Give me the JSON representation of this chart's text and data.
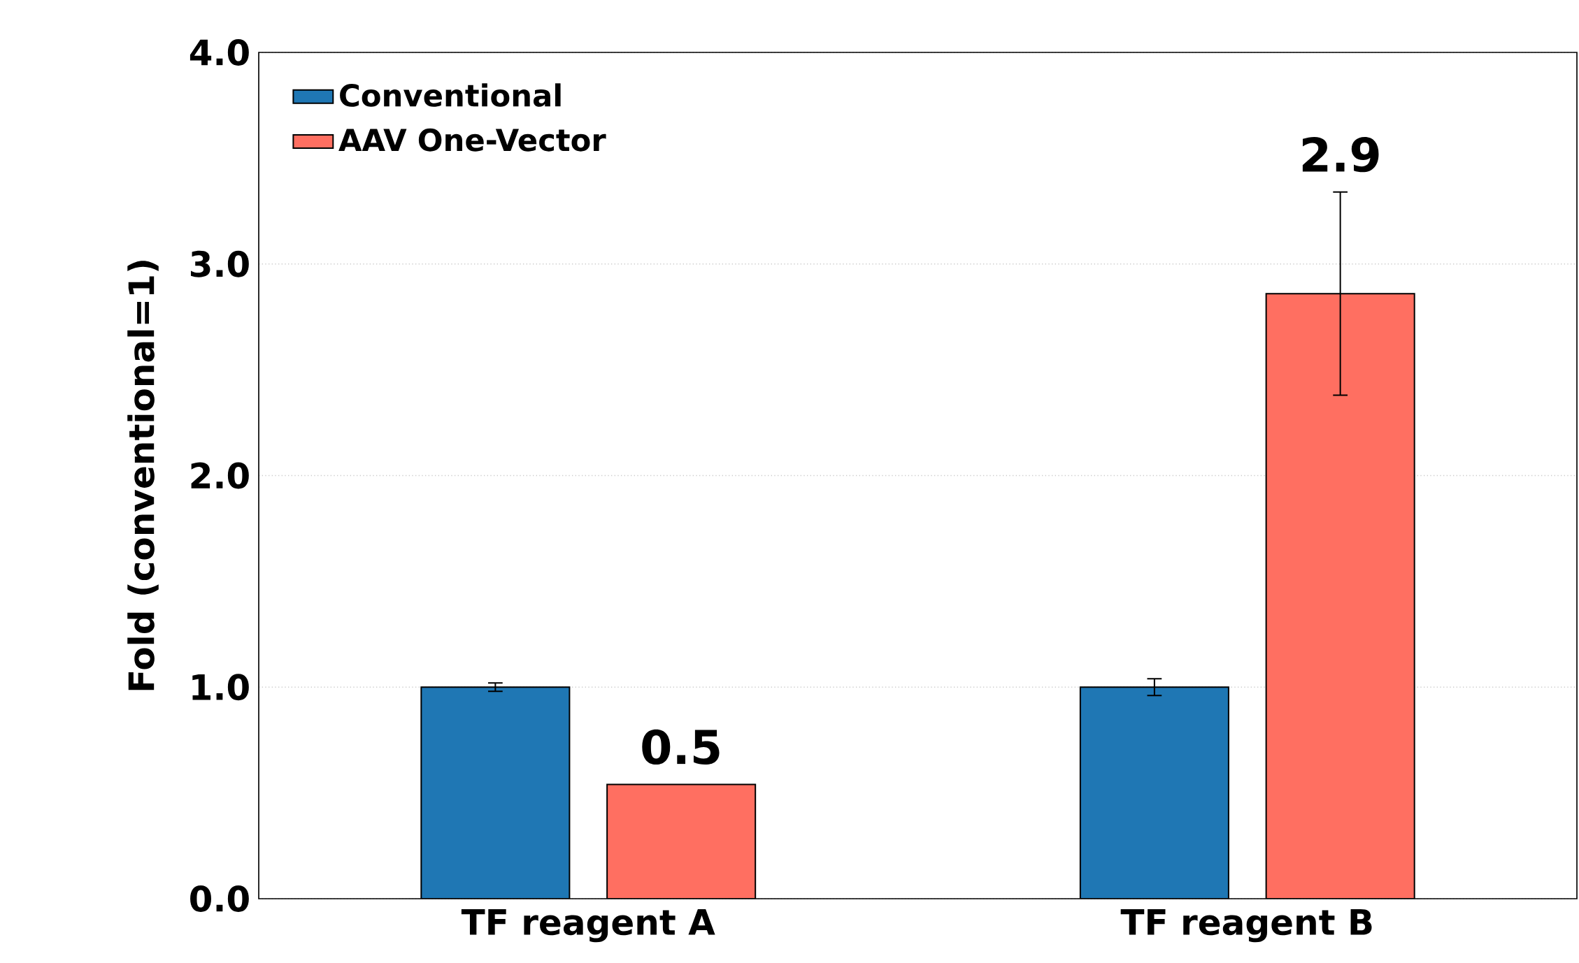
{
  "chart_data": {
    "type": "bar",
    "ylabel": "Fold (conventional=1)",
    "categories": [
      "TF reagent A",
      "TF reagent B"
    ],
    "series": [
      {
        "name": "Conventional",
        "color": "#1f77b4",
        "values": [
          1.0,
          1.0
        ],
        "errors": [
          0.02,
          0.04
        ]
      },
      {
        "name": "AAV One-Vector",
        "color": "#ff6f61",
        "values": [
          0.54,
          2.86
        ],
        "errors": [
          null,
          0.48
        ],
        "value_labels": [
          "0.5",
          "2.9"
        ]
      }
    ],
    "ylim": [
      0,
      4
    ],
    "yticks": [
      {
        "value": 0,
        "label": "0.0"
      },
      {
        "value": 1,
        "label": "1.0"
      },
      {
        "value": 2,
        "label": "2.0"
      },
      {
        "value": 3,
        "label": "3.0"
      },
      {
        "value": 4,
        "label": "4.0"
      }
    ],
    "grid": "y",
    "legend": "top left"
  }
}
